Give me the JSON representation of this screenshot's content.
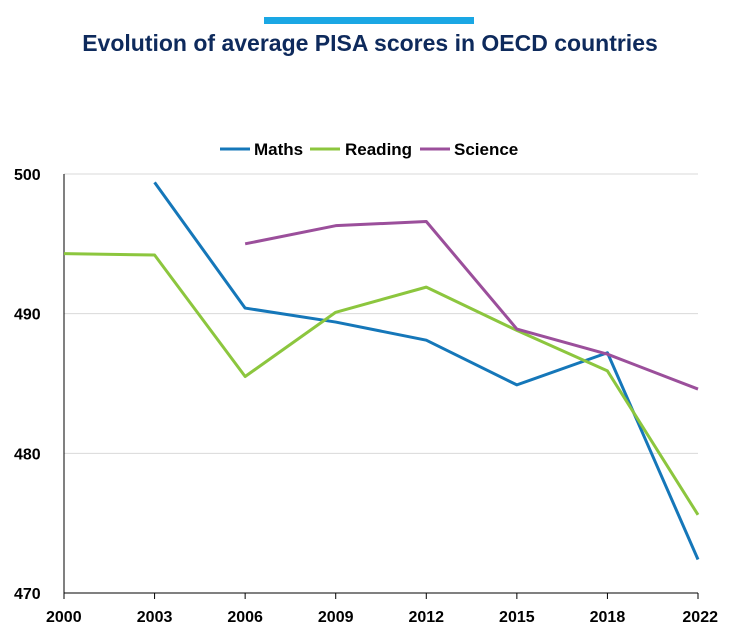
{
  "accent_color": "#1aa7e4",
  "chart_data": {
    "type": "line",
    "title": "Evolution of average PISA scores in OECD countries",
    "xlabel": "",
    "ylabel": "",
    "x": [
      "2000",
      "2003",
      "2006",
      "2009",
      "2012",
      "2015",
      "2018",
      "2022"
    ],
    "ylim": [
      470,
      500
    ],
    "yticks": [
      "470",
      "480",
      "490",
      "500"
    ],
    "grid": true,
    "legend_position": "top-center",
    "series": [
      {
        "name": "Maths",
        "color": "#1577b9",
        "values": [
          null,
          499.4,
          490.4,
          489.4,
          488.1,
          484.9,
          487.2,
          472.4
        ]
      },
      {
        "name": "Reading",
        "color": "#8cc63e",
        "values": [
          494.3,
          494.2,
          485.5,
          490.1,
          491.9,
          488.8,
          485.9,
          475.6
        ]
      },
      {
        "name": "Science",
        "color": "#9b4f9b",
        "values": [
          null,
          null,
          495.0,
          496.3,
          496.6,
          488.9,
          487.1,
          484.6
        ]
      }
    ]
  }
}
